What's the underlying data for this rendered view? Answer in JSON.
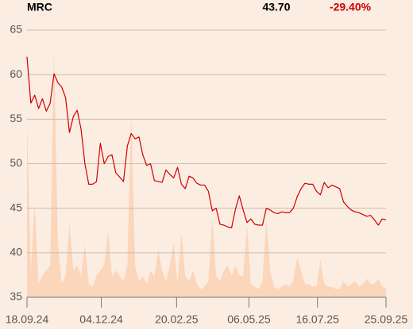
{
  "chart_data": {
    "type": "line",
    "title": "MRC",
    "annotations": [
      "43.70",
      "-29.40%"
    ],
    "x": [
      "2024-09-18",
      "2024-09-22",
      "2024-09-26",
      "2024-09-30",
      "2024-10-04",
      "2024-10-08",
      "2024-10-12",
      "2024-10-16",
      "2024-10-20",
      "2024-10-24",
      "2024-10-28",
      "2024-11-01",
      "2024-11-05",
      "2024-11-09",
      "2024-11-13",
      "2024-11-17",
      "2024-11-21",
      "2024-11-25",
      "2024-11-29",
      "2024-12-03",
      "2024-12-07",
      "2024-12-11",
      "2024-12-15",
      "2024-12-19",
      "2024-12-23",
      "2024-12-27",
      "2024-12-31",
      "2025-01-04",
      "2025-01-08",
      "2025-01-12",
      "2025-01-16",
      "2025-01-20",
      "2025-01-24",
      "2025-01-28",
      "2025-02-01",
      "2025-02-05",
      "2025-02-09",
      "2025-02-13",
      "2025-02-17",
      "2025-02-21",
      "2025-02-25",
      "2025-03-01",
      "2025-03-05",
      "2025-03-09",
      "2025-03-13",
      "2025-03-17",
      "2025-03-21",
      "2025-03-25",
      "2025-03-29",
      "2025-04-02",
      "2025-04-06",
      "2025-04-10",
      "2025-04-14",
      "2025-04-18",
      "2025-04-22",
      "2025-04-26",
      "2025-04-30",
      "2025-05-04",
      "2025-05-08",
      "2025-05-12",
      "2025-05-16",
      "2025-05-20",
      "2025-05-24",
      "2025-05-28",
      "2025-06-01",
      "2025-06-05",
      "2025-06-09",
      "2025-06-13",
      "2025-06-17",
      "2025-06-21",
      "2025-06-25",
      "2025-06-29",
      "2025-07-03",
      "2025-07-07",
      "2025-07-11",
      "2025-07-15",
      "2025-07-19",
      "2025-07-23",
      "2025-07-27",
      "2025-07-31",
      "2025-08-04",
      "2025-08-08",
      "2025-08-12",
      "2025-08-16",
      "2025-08-20",
      "2025-08-24",
      "2025-08-28",
      "2025-09-01",
      "2025-09-05",
      "2025-09-09",
      "2025-09-13",
      "2025-09-17",
      "2025-09-21",
      "2025-09-25"
    ],
    "series": [
      {
        "color": "#cc0000",
        "values": [
          62.0,
          56.8,
          57.7,
          56.2,
          57.3,
          55.9,
          56.8,
          60.1,
          59.1,
          58.6,
          57.4,
          53.5,
          55.3,
          56.0,
          53.9,
          50.0,
          47.7,
          47.7,
          48.0,
          52.3,
          50.0,
          50.8,
          51.0,
          49.0,
          48.5,
          48.0,
          52.0,
          53.4,
          52.8,
          53.0,
          51.0,
          49.8,
          50.0,
          48.1,
          48.0,
          47.9,
          49.3,
          48.8,
          48.4,
          49.6,
          47.7,
          47.2,
          48.6,
          48.4,
          47.8,
          47.6,
          47.6,
          46.9,
          44.7,
          45.0,
          43.2,
          43.1,
          42.9,
          42.8,
          44.9,
          46.4,
          44.8,
          43.4,
          43.8,
          43.2,
          43.1,
          43.1,
          45.0,
          44.8,
          44.5,
          44.4,
          44.6,
          44.5,
          44.5,
          45.0,
          46.3,
          47.2,
          47.8,
          47.7,
          47.7,
          46.9,
          46.5,
          47.9,
          47.3,
          47.6,
          47.4,
          47.2,
          45.7,
          45.2,
          44.8,
          44.6,
          44.5,
          44.3,
          44.1,
          44.2,
          43.7,
          43.1,
          43.8,
          43.7
        ]
      },
      {
        "color": "#fbd6ba",
        "axis": "y2",
        "values": [
          66,
          10,
          35,
          5,
          8,
          10,
          12,
          93,
          20,
          5,
          8,
          28,
          10,
          12,
          8,
          20,
          5,
          4,
          8,
          10,
          12,
          25,
          8,
          10,
          8,
          6,
          12,
          69,
          12,
          6,
          8,
          5,
          10,
          8,
          18,
          10,
          6,
          12,
          20,
          5,
          24,
          8,
          6,
          10,
          5,
          3,
          4,
          6,
          30,
          8,
          6,
          10,
          12,
          8,
          12,
          8,
          8,
          27,
          5,
          4,
          3,
          6,
          29,
          10,
          4,
          3,
          4,
          5,
          4,
          6,
          15,
          10,
          5,
          5,
          4,
          4,
          14,
          5,
          4,
          4,
          3,
          3,
          6,
          4,
          5,
          6,
          4,
          5,
          7,
          5,
          5,
          7,
          4,
          3
        ]
      }
    ],
    "xlim": [
      "2024-09-18",
      "2025-09-25"
    ],
    "xticks": [
      {
        "value": "2024-09-18",
        "label": "18.09.24"
      },
      {
        "value": "2024-12-04",
        "label": "04.12.24"
      },
      {
        "value": "2025-02-20",
        "label": "20.02.25"
      },
      {
        "value": "2025-05-06",
        "label": "06.05.25"
      },
      {
        "value": "2025-07-16",
        "label": "16.07.25"
      },
      {
        "value": "2025-09-25",
        "label": "25.09.25"
      }
    ],
    "ylim": [
      35,
      65
    ],
    "yticks": [
      35,
      40,
      45,
      50,
      55,
      60,
      65
    ],
    "y2lim": [
      0,
      100
    ],
    "grid": true,
    "annotation_colors": [
      "#000000",
      "#cc0000"
    ]
  }
}
